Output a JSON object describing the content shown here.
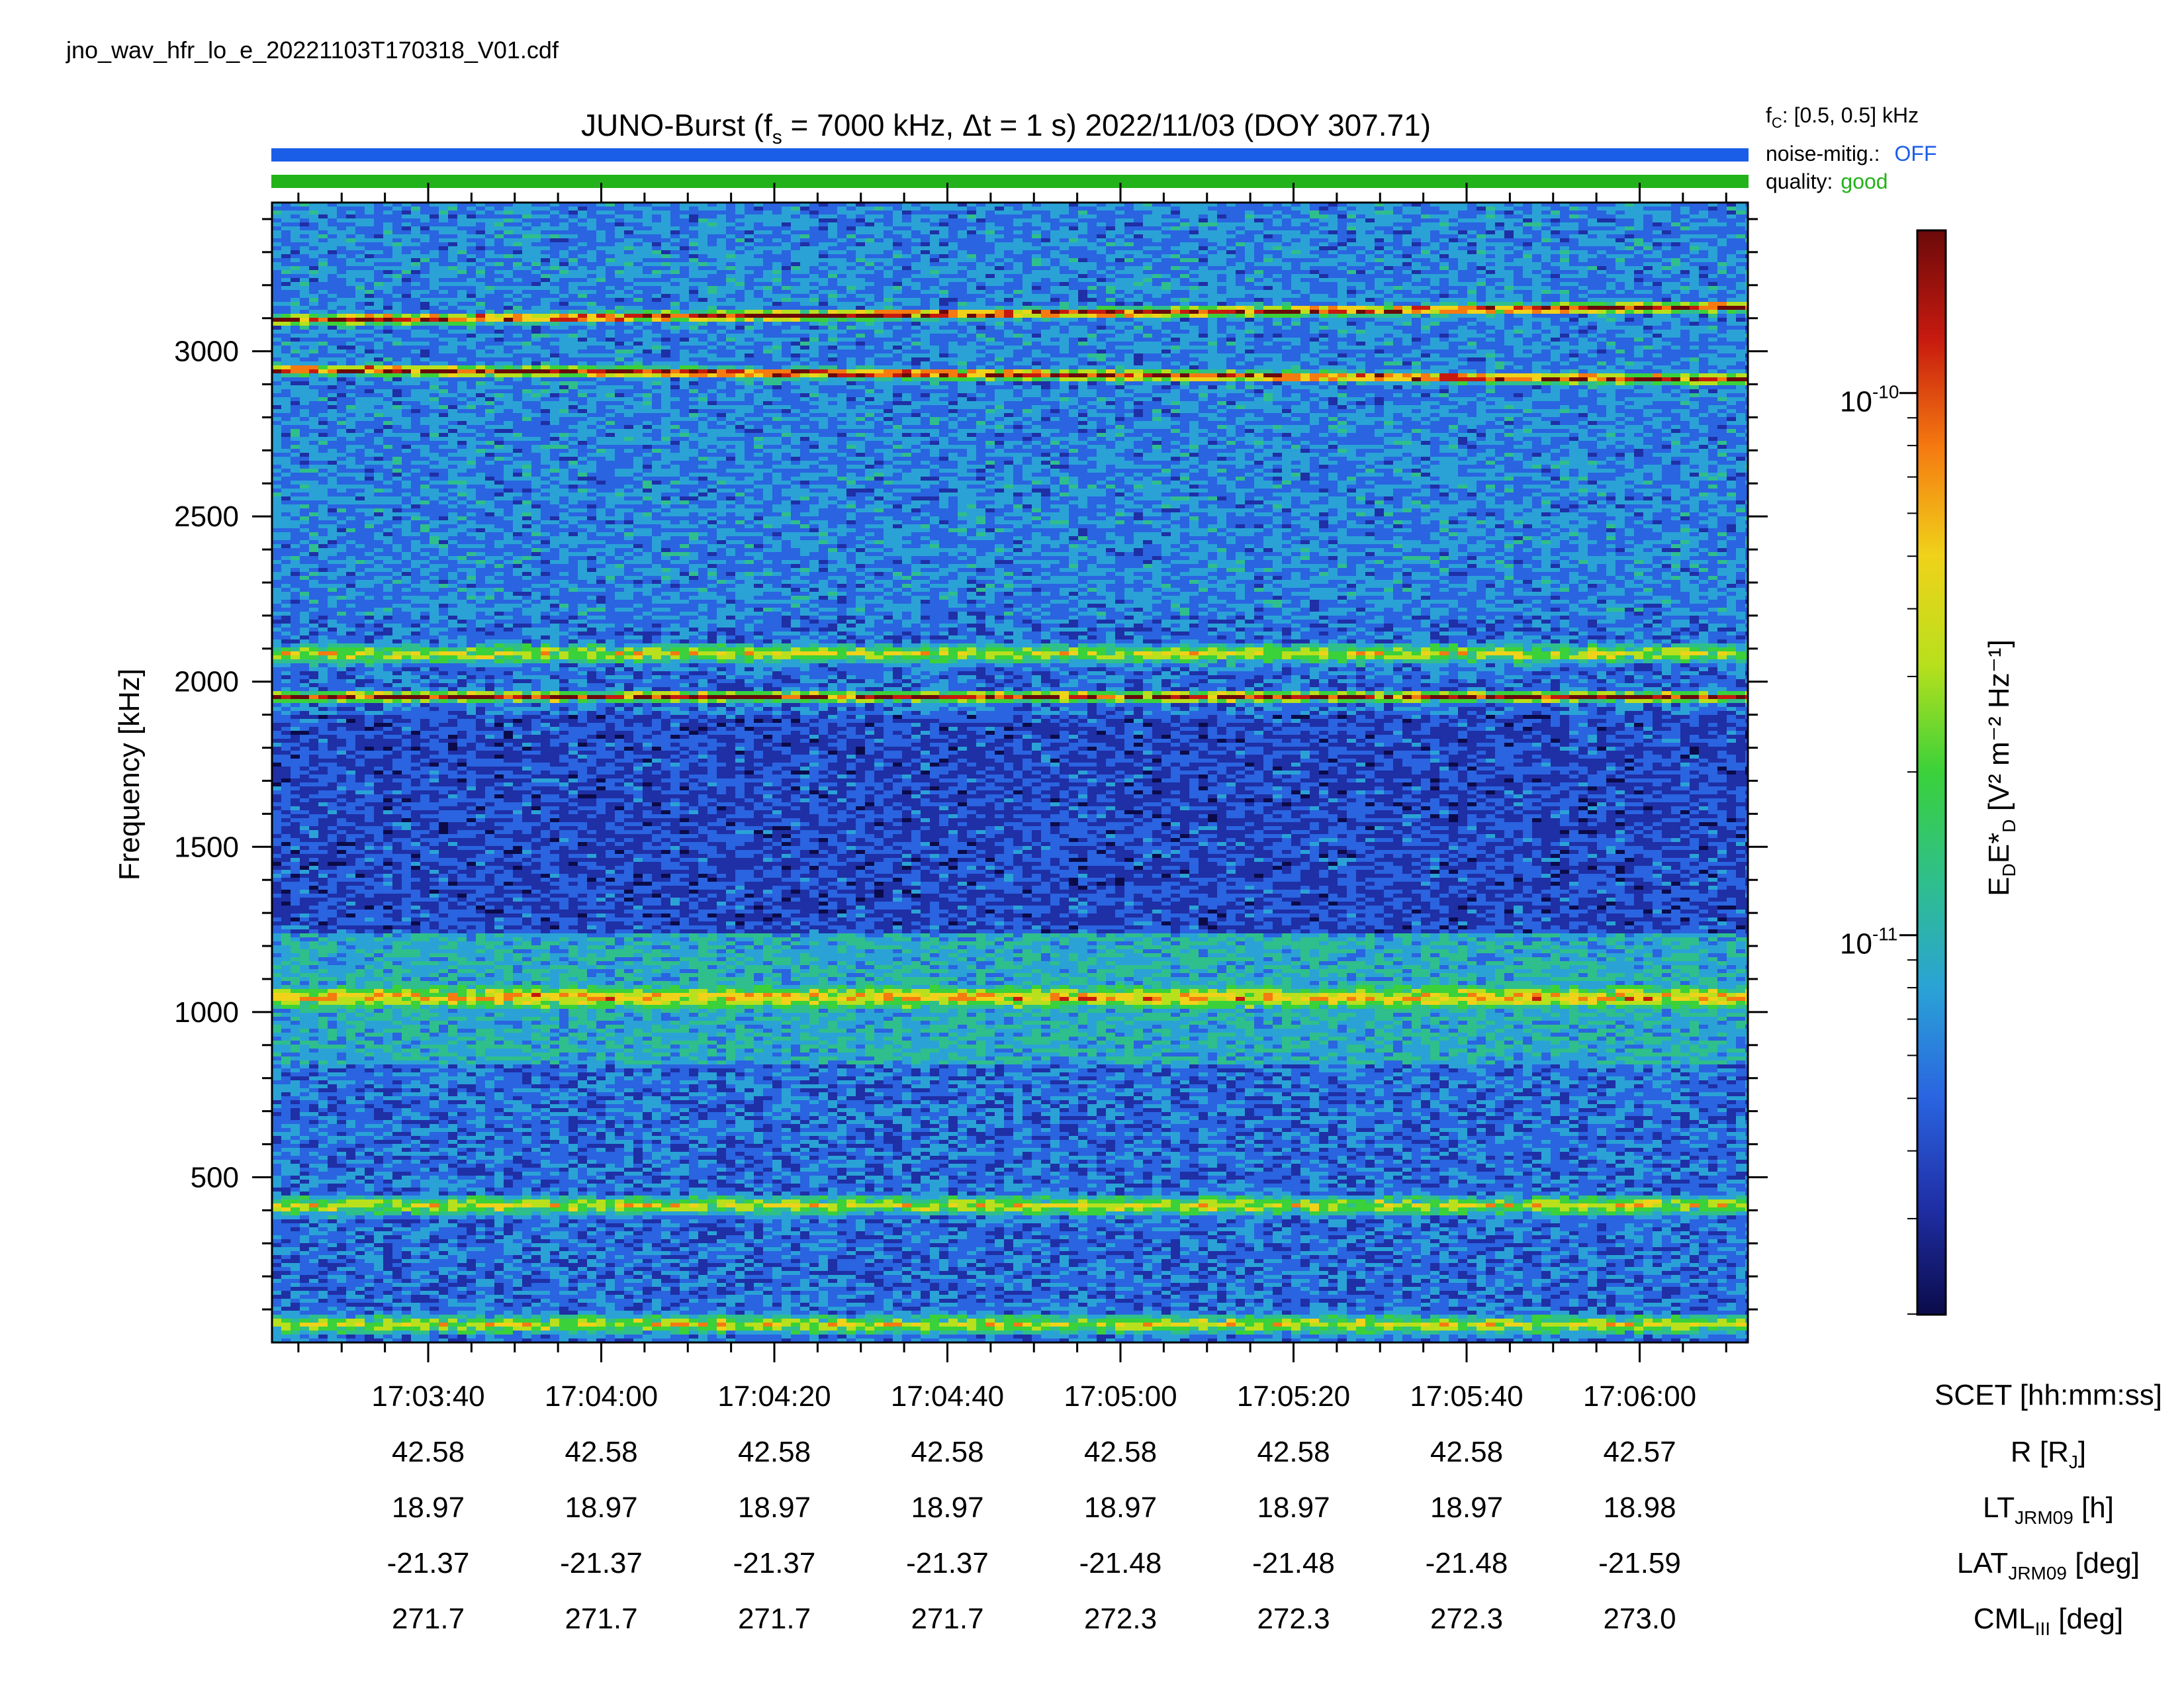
{
  "filename": "jno_wav_hfr_lo_e_20221103T170318_V01.cdf",
  "title": {
    "prefix": "JUNO-Burst (f",
    "fs_sub": "s",
    "fs_value": " = 7000 kHz, Δt = 1 s)  2022/11/03 (DOY 307.71)"
  },
  "info": {
    "fc_label": "f",
    "fc_sub": "C",
    "fc_value": ": [0.5, 0.5] kHz",
    "noise_label": "noise-mitig.:",
    "noise_value": "OFF",
    "quality_label": "quality:",
    "quality_value": "good",
    "colors": {
      "noise_bar": "#1a5ee8",
      "quality_bar": "#22b31a",
      "noise_text": "#1a5ee8",
      "quality_text": "#22b31a"
    }
  },
  "colorbar": {
    "label_main": "E",
    "label_sub1": "D",
    "label_mid": "E*",
    "label_sub2": "D",
    "label_units": " [V² m⁻² Hz⁻¹]",
    "tick_1e10": "10",
    "tick_1e10_exp": "-10",
    "tick_1e11": "10",
    "tick_1e11_exp": "-11",
    "range_log10": [
      -11.7,
      -9.7
    ],
    "colormap": [
      "#0b0b4a",
      "#1f2fa6",
      "#2a64e0",
      "#2aa2d6",
      "#2fbf8c",
      "#3ad13a",
      "#b8e01c",
      "#f0d21a",
      "#f57a10",
      "#c71a0f",
      "#6b0a0a"
    ]
  },
  "chart_data": {
    "type": "heatmap",
    "ylabel": "Frequency [kHz]",
    "ylim": [
      0,
      3450
    ],
    "yticks": [
      "500",
      "1000",
      "1500",
      "2000",
      "2500",
      "3000"
    ],
    "ytick_values": [
      500,
      1000,
      1500,
      2000,
      2500,
      3000
    ],
    "xlabel": "SCET [hh:mm:ss]",
    "xticks": [
      "17:03:40",
      "17:04:00",
      "17:04:20",
      "17:04:40",
      "17:05:00",
      "17:05:20",
      "17:05:40",
      "17:06:00"
    ],
    "emission_bands": [
      {
        "frequency_kHz": 3100,
        "level": "strong"
      },
      {
        "frequency_kHz": 2950,
        "level": "strong"
      },
      {
        "frequency_kHz": 1960,
        "level": "strong"
      },
      {
        "frequency_kHz": 2090,
        "level": "moderate"
      },
      {
        "frequency_kHz": 1050,
        "level": "moderate"
      },
      {
        "frequency_kHz": 420,
        "level": "moderate"
      },
      {
        "frequency_kHz": 60,
        "level": "moderate"
      }
    ],
    "ephemeris": {
      "rows": [
        {
          "label": "R [R",
          "sub": "J",
          "suffix": "]",
          "values": [
            "42.58",
            "42.58",
            "42.58",
            "42.58",
            "42.58",
            "42.58",
            "42.58",
            "42.57"
          ]
        },
        {
          "label": "LT",
          "sub": "JRM09",
          "suffix": " [h]",
          "values": [
            "18.97",
            "18.97",
            "18.97",
            "18.97",
            "18.97",
            "18.97",
            "18.97",
            "18.98"
          ]
        },
        {
          "label": "LAT",
          "sub": "JRM09",
          "suffix": " [deg]",
          "values": [
            "-21.37",
            "-21.37",
            "-21.37",
            "-21.37",
            "-21.48",
            "-21.48",
            "-21.48",
            "-21.59"
          ]
        },
        {
          "label": "CML",
          "sub": "III",
          "suffix": " [deg]",
          "values": [
            "271.7",
            "271.7",
            "271.7",
            "271.7",
            "272.3",
            "272.3",
            "272.3",
            "273.0"
          ]
        }
      ]
    }
  }
}
